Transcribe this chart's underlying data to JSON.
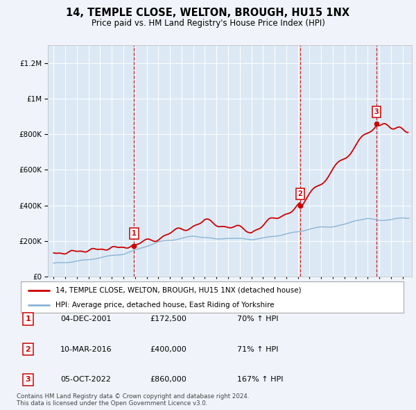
{
  "title": "14, TEMPLE CLOSE, WELTON, BROUGH, HU15 1NX",
  "subtitle": "Price paid vs. HM Land Registry's House Price Index (HPI)",
  "legend_line1": "14, TEMPLE CLOSE, WELTON, BROUGH, HU15 1NX (detached house)",
  "legend_line2": "HPI: Average price, detached house, East Riding of Yorkshire",
  "sale_points": [
    {
      "num": 1,
      "year": 2001.92,
      "price": 172500,
      "date": "04-DEC-2001",
      "pct": "70%",
      "dir": "↑"
    },
    {
      "num": 2,
      "year": 2016.19,
      "price": 400000,
      "date": "10-MAR-2016",
      "pct": "71%",
      "dir": "↑"
    },
    {
      "num": 3,
      "year": 2022.75,
      "price": 860000,
      "date": "05-OCT-2022",
      "pct": "167%",
      "dir": "↑"
    }
  ],
  "footnote1": "Contains HM Land Registry data © Crown copyright and database right 2024.",
  "footnote2": "This data is licensed under the Open Government Licence v3.0.",
  "plot_bg": "#dce9f5",
  "fig_bg": "#f0f4fa",
  "red_color": "#cc0000",
  "blue_color": "#8ab4d4",
  "grid_color": "#ffffff",
  "ylim": [
    0,
    1300000
  ],
  "xlim_start": 1994.5,
  "xlim_end": 2025.8
}
